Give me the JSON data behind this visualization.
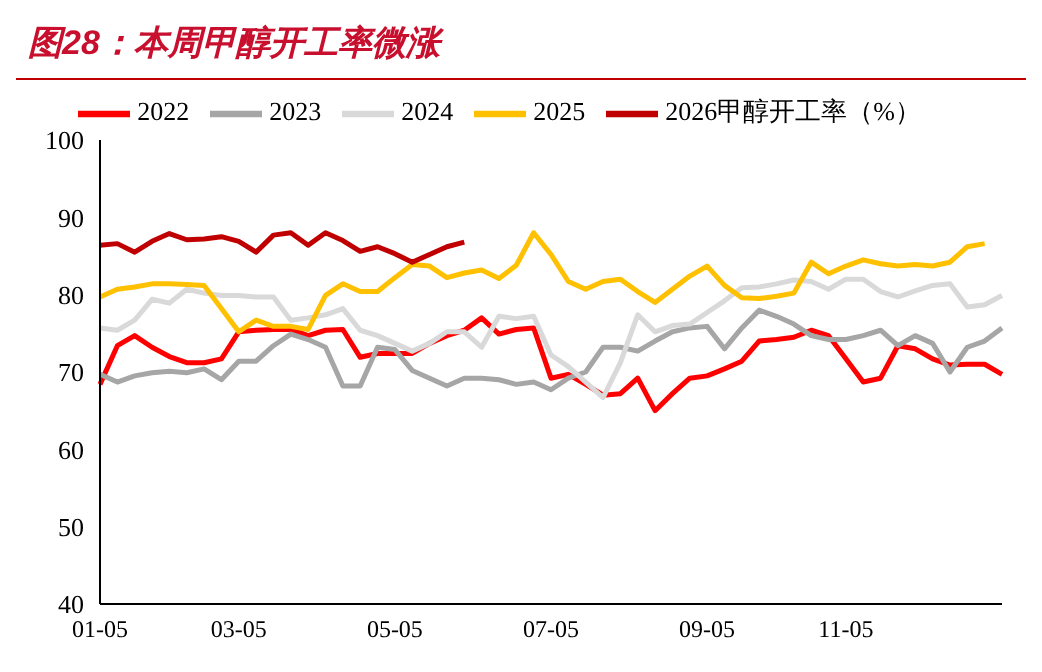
{
  "chart_data": {
    "type": "line",
    "title": "图28：本周甲醇开工率微涨",
    "categories": [
      "01-05",
      null,
      null,
      null,
      null,
      null,
      null,
      null,
      "03-05",
      null,
      null,
      null,
      null,
      null,
      null,
      null,
      null,
      "05-05",
      null,
      null,
      null,
      null,
      null,
      null,
      null,
      null,
      "07-05",
      null,
      null,
      null,
      null,
      null,
      null,
      null,
      null,
      "09-05",
      null,
      null,
      null,
      null,
      null,
      null,
      null,
      "11-05",
      null,
      null,
      null,
      null,
      null,
      null,
      null,
      null,
      null
    ],
    "series": [
      {
        "name": "2022",
        "color": "#ff0000",
        "values": [
          68.4,
          73.4,
          74.7,
          73.2,
          72,
          71.2,
          71.2,
          71.7,
          75.2,
          75.4,
          75.5,
          75.5,
          74.7,
          75.4,
          75.5,
          71.9,
          72.4,
          72.4,
          72.4,
          73.7,
          74.7,
          75.4,
          77,
          74.9,
          75.5,
          75.7,
          69.2,
          69.7,
          68.4,
          67,
          67.2,
          69.2,
          65,
          67.2,
          69.2,
          69.5,
          70.4,
          71.4,
          74,
          74.2,
          74.5,
          75.4,
          74.7,
          71.7,
          68.7,
          69.2,
          73.4,
          73,
          71.7,
          70.9,
          71,
          71,
          69.7
        ]
      },
      {
        "name": "2023",
        "color": "#a6a6a6",
        "values": [
          69.7,
          68.7,
          69.5,
          69.9,
          70.1,
          69.9,
          70.4,
          69,
          71.4,
          71.4,
          73.4,
          74.9,
          74.2,
          73.2,
          68.2,
          68.2,
          73.2,
          72.9,
          70.2,
          69.2,
          68.2,
          69.2,
          69.2,
          69,
          68.4,
          68.7,
          67.7,
          69.2,
          70,
          73.2,
          73.2,
          72.7,
          74,
          75.2,
          75.7,
          75.9,
          73,
          75.7,
          78,
          77.2,
          76.2,
          74.7,
          74.2,
          74.2,
          74.7,
          75.4,
          73.4,
          74.7,
          73.7,
          70,
          73.2,
          74,
          75.7
        ]
      },
      {
        "name": "2024",
        "color": "#d9d9d9",
        "values": [
          75.7,
          75.4,
          76.7,
          79.4,
          78.9,
          80.7,
          80.2,
          79.9,
          79.9,
          79.7,
          79.7,
          76.7,
          77,
          77.4,
          78.2,
          75.4,
          74.7,
          73.7,
          72.7,
          73.7,
          75.2,
          75.2,
          73.2,
          77.2,
          76.9,
          77.2,
          72.2,
          70.7,
          68.7,
          66.7,
          71.2,
          77.4,
          75.2,
          76,
          76.2,
          77.7,
          79.2,
          80.9,
          81,
          81.4,
          81.9,
          81.7,
          80.7,
          82,
          82,
          80.4,
          79.7,
          80.5,
          81.2,
          81.4,
          78.4,
          78.7,
          79.9
        ]
      },
      {
        "name": "2025",
        "color": "#ffc000",
        "values": [
          79.7,
          80.7,
          81,
          81.4,
          81.4,
          81.3,
          81.2,
          78.2,
          75.2,
          76.7,
          75.9,
          75.9,
          75.5,
          79.9,
          81.4,
          80.4,
          80.4,
          82.2,
          83.9,
          83.7,
          82.2,
          82.8,
          83.2,
          82.1,
          83.8,
          88,
          85.2,
          81.7,
          80.7,
          81.7,
          82,
          80.4,
          79,
          80.7,
          82.4,
          83.7,
          81.2,
          79.6,
          79.5,
          79.8,
          80.2,
          84.2,
          82.7,
          83.7,
          84.5,
          84,
          83.7,
          83.9,
          83.7,
          84.2,
          86.2,
          86.6,
          null
        ]
      },
      {
        "name": "2026甲醇开工率（%）",
        "color": "#c00000",
        "values": [
          86.4,
          86.6,
          85.5,
          86.9,
          87.9,
          87.1,
          87.2,
          87.5,
          86.9,
          85.5,
          87.7,
          88,
          86.4,
          88,
          87,
          85.6,
          86.2,
          85.3,
          84.2,
          85.2,
          86.2,
          86.8,
          null,
          null,
          null,
          null,
          null,
          null,
          null,
          null,
          null,
          null,
          null,
          null,
          null,
          null,
          null,
          null,
          null,
          null,
          null,
          null,
          null,
          null,
          null,
          null,
          null,
          null,
          null,
          null,
          null,
          null,
          null
        ]
      }
    ],
    "ylim": [
      40,
      100
    ],
    "yticks": [
      40,
      50,
      60,
      70,
      80,
      90,
      100
    ],
    "legend": "top",
    "marker": "none",
    "line_style": "solid"
  }
}
